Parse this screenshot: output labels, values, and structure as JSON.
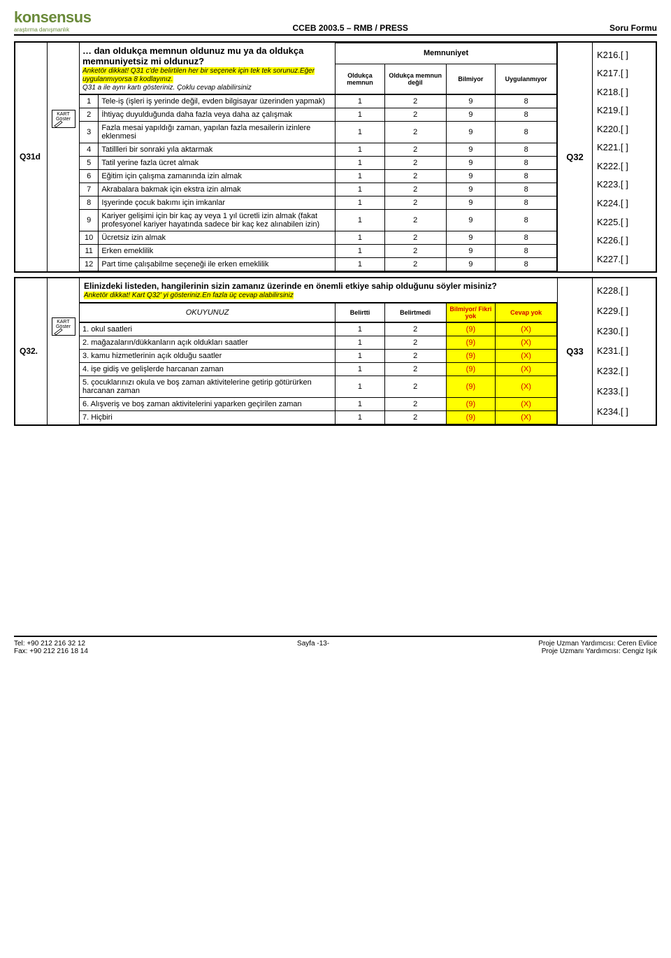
{
  "header": {
    "logo": "konsensus",
    "logo_sub": "araştırma danışmanlık",
    "center": "CCEB 2003.5 – RMB / PRESS",
    "right": "Soru Formu"
  },
  "q31d": {
    "id": "Q31d",
    "title": "… dan oldukça memnun oldunuz mu ya da oldukça memnuniyetsiz mi oldunuz?",
    "instr1": "Anketör dikkat! Q31 c'de belirtilen her bir seçenek için tek tek sorunuz.Eğer uygulanmıyorsa 8 kodlayınız.",
    "instr2": "Q31 a ile aynı kartı gösteriniz. Çoklu cevap alabilirsiniz",
    "sat_header": "Memnuniyet",
    "cols": [
      "Oldukça memnun",
      "Oldukça memnun değil",
      "Bilmiyor",
      "Uygulanmıyor"
    ],
    "goto": "Q32",
    "kart": "KART Göster",
    "rows": [
      {
        "n": "1",
        "t": "Tele-iş (işleri iş yerinde değil, evden bilgisayar üzerinden yapmak)",
        "v": [
          "1",
          "2",
          "9",
          "8"
        ],
        "k": "K216.[     ]"
      },
      {
        "n": "2",
        "t": "İhtiyaç duyulduğunda daha fazla veya daha az çalışmak",
        "v": [
          "1",
          "2",
          "9",
          "8"
        ],
        "k": "K217.[     ]"
      },
      {
        "n": "3",
        "t": "Fazla mesai yapıldığı zaman, yapılan fazla mesailerin  izinlere eklenmesi",
        "v": [
          "1",
          "2",
          "9",
          "8"
        ],
        "k": "K218.[     ]"
      },
      {
        "n": "4",
        "t": "Tatillleri bir sonraki yıla aktarmak",
        "v": [
          "1",
          "2",
          "9",
          "8"
        ],
        "k": "K219.[     ]"
      },
      {
        "n": "5",
        "t": "Tatil yerine fazla ücret almak",
        "v": [
          "1",
          "2",
          "9",
          "8"
        ],
        "k": "K220.[     ]"
      },
      {
        "n": "6",
        "t": "Eğitim için çalışma zamanında izin almak",
        "v": [
          "1",
          "2",
          "9",
          "8"
        ],
        "k": "K221.[     ]"
      },
      {
        "n": "7",
        "t": "Akrabalara bakmak için ekstra izin almak",
        "v": [
          "1",
          "2",
          "9",
          "8"
        ],
        "k": "K222.[     ]"
      },
      {
        "n": "8",
        "t": "Işyerinde çocuk bakımı için imkanlar",
        "v": [
          "1",
          "2",
          "9",
          "8"
        ],
        "k": "K223.[     ]"
      },
      {
        "n": "9",
        "t": "Kariyer gelişimi için bir kaç ay veya 1 yıl ücretli izin almak (fakat profesyonel kariyer hayatında sadece bir kaç kez alınabilen izin)",
        "v": [
          "1",
          "2",
          "9",
          "8"
        ],
        "k": "K224.[     ]"
      },
      {
        "n": "10",
        "t": "Ücretsiz izin almak",
        "v": [
          "1",
          "2",
          "9",
          "8"
        ],
        "k": "K225.[     ]"
      },
      {
        "n": "11",
        "t": "Erken emeklilik",
        "v": [
          "1",
          "2",
          "9",
          "8"
        ],
        "k": "K226.[     ]"
      },
      {
        "n": "12",
        "t": "Part time çalışabilme seçeneği ile erken emeklilik",
        "v": [
          "1",
          "2",
          "9",
          "8"
        ],
        "k": "K227.[     ]"
      }
    ]
  },
  "q32": {
    "id": "Q32.",
    "title": "Elinizdeki listeden,  hangilerinin sizin zamanız üzerinde en önemli etkiye sahip olduğunu söyler misiniz?",
    "instr": "Anketör dikkat! Kart Q32' yi gösteriniz.En fazla üç cevap alabilirsiniz",
    "read": "OKUYUNUZ",
    "cols": [
      "Belirtti",
      "Belirtmedi",
      "Bilmiyor/ Fikri yok",
      "Cevap yok"
    ],
    "goto": "Q33",
    "kart": "KART Göster",
    "rows": [
      {
        "t": "1. okul saatleri",
        "v": [
          "1",
          "2",
          "(9)",
          "(X)"
        ],
        "k": "K228.[     ]"
      },
      {
        "t": "2. mağazaların/dükkanların açık oldukları saatler",
        "v": [
          "1",
          "2",
          "(9)",
          "(X)"
        ],
        "k": "K229.[     ]"
      },
      {
        "t": "3.  kamu hizmetlerinin açık olduğu saatler",
        "v": [
          "1",
          "2",
          "(9)",
          "(X)"
        ],
        "k": "K230.[     ]"
      },
      {
        "t": "4. işe gidiş ve gelişlerde harcanan zaman",
        "v": [
          "1",
          "2",
          "(9)",
          "(X)"
        ],
        "k": "K231.[     ]"
      },
      {
        "t": "5. çocuklarınızı okula ve boş zaman aktivitelerine getirip götürürken harcanan zaman",
        "v": [
          "1",
          "2",
          "(9)",
          "(X)"
        ],
        "k": "K232.[     ]"
      },
      {
        "t": "6. Alışveriş ve boş zaman aktivitelerini yaparken geçirilen zaman",
        "v": [
          "1",
          "2",
          "(9)",
          "(X)"
        ],
        "k": "K233.[     ]"
      },
      {
        "t": "7. Hiçbiri",
        "v": [
          "1",
          "2",
          "(9)",
          "(X)"
        ],
        "k": "K234.[     ]"
      }
    ]
  },
  "footer": {
    "tel": "Tel: +90 212 216 32 12",
    "fax": "Fax: +90 212 216 18 14",
    "page": "Sayfa -13-",
    "r1": "Proje Uzman Yardımcısı: Ceren Evlice",
    "r2": "Proje Uzmanı Yardımcısı: Cengiz Işık"
  }
}
